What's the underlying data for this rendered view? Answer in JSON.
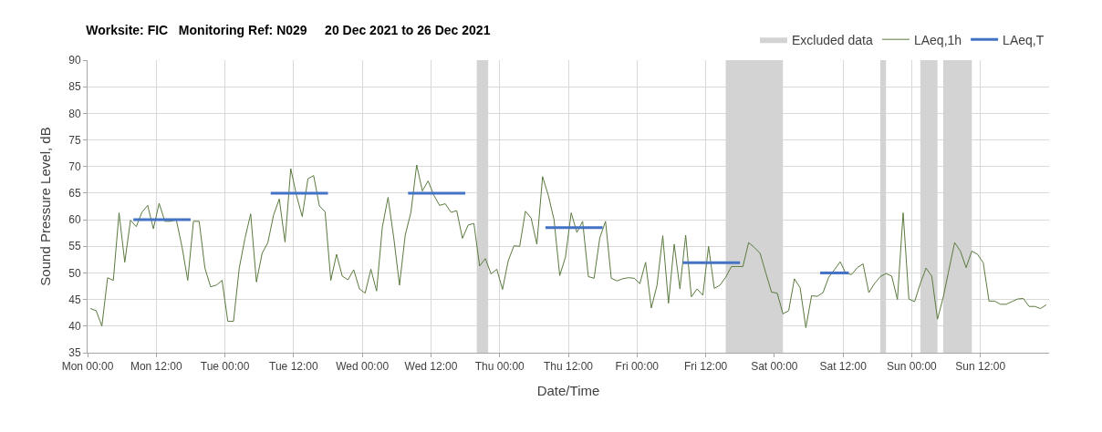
{
  "chart_data": {
    "type": "line",
    "title": "Worksite: FIC   Monitoring Ref: N029     20 Dec 2021 to 26 Dec 2021",
    "xlabel": "Date/Time",
    "ylabel": "Sound Pressure Level, dB",
    "x": [
      "2021-12-20T00:30",
      "2021-12-20T01:30",
      "2021-12-20T02:30",
      "2021-12-20T03:30",
      "2021-12-20T04:30",
      "2021-12-20T05:30",
      "2021-12-20T06:30",
      "2021-12-20T07:30",
      "2021-12-20T08:30",
      "2021-12-20T09:30",
      "2021-12-20T10:30",
      "2021-12-20T11:30",
      "2021-12-20T12:30",
      "2021-12-20T13:30",
      "2021-12-20T14:30",
      "2021-12-20T15:30",
      "2021-12-20T16:30",
      "2021-12-20T17:30",
      "2021-12-20T18:30",
      "2021-12-20T19:30",
      "2021-12-20T20:30",
      "2021-12-20T21:30",
      "2021-12-20T22:30",
      "2021-12-20T23:30",
      "2021-12-21T00:30",
      "2021-12-21T01:30",
      "2021-12-21T02:30",
      "2021-12-21T03:30",
      "2021-12-21T04:30",
      "2021-12-21T05:30",
      "2021-12-21T06:30",
      "2021-12-21T07:30",
      "2021-12-21T08:30",
      "2021-12-21T09:30",
      "2021-12-21T10:30",
      "2021-12-21T11:30",
      "2021-12-21T12:30",
      "2021-12-21T13:30",
      "2021-12-21T14:30",
      "2021-12-21T15:30",
      "2021-12-21T16:30",
      "2021-12-21T17:30",
      "2021-12-21T18:30",
      "2021-12-21T19:30",
      "2021-12-21T20:30",
      "2021-12-21T21:30",
      "2021-12-21T22:30",
      "2021-12-21T23:30",
      "2021-12-22T00:30",
      "2021-12-22T01:30",
      "2021-12-22T02:30",
      "2021-12-22T03:30",
      "2021-12-22T04:30",
      "2021-12-22T05:30",
      "2021-12-22T06:30",
      "2021-12-22T07:30",
      "2021-12-22T08:30",
      "2021-12-22T09:30",
      "2021-12-22T10:30",
      "2021-12-22T11:30",
      "2021-12-22T12:30",
      "2021-12-22T13:30",
      "2021-12-22T14:30",
      "2021-12-22T15:30",
      "2021-12-22T16:30",
      "2021-12-22T17:30",
      "2021-12-22T18:30",
      "2021-12-22T19:30",
      "2021-12-22T20:30",
      "2021-12-22T21:30",
      "2021-12-22T22:30",
      "2021-12-22T23:30",
      "2021-12-23T00:30",
      "2021-12-23T01:30",
      "2021-12-23T02:30",
      "2021-12-23T03:30",
      "2021-12-23T04:30",
      "2021-12-23T05:30",
      "2021-12-23T06:30",
      "2021-12-23T07:30",
      "2021-12-23T08:30",
      "2021-12-23T09:30",
      "2021-12-23T10:30",
      "2021-12-23T11:30",
      "2021-12-23T12:30",
      "2021-12-23T13:30",
      "2021-12-23T14:30",
      "2021-12-23T15:30",
      "2021-12-23T16:30",
      "2021-12-23T17:30",
      "2021-12-23T18:30",
      "2021-12-23T19:30",
      "2021-12-23T20:30",
      "2021-12-23T21:30",
      "2021-12-23T22:30",
      "2021-12-23T23:30",
      "2021-12-24T00:30",
      "2021-12-24T01:30",
      "2021-12-24T02:30",
      "2021-12-24T03:30",
      "2021-12-24T04:30",
      "2021-12-24T05:30",
      "2021-12-24T06:30",
      "2021-12-24T07:30",
      "2021-12-24T08:30",
      "2021-12-24T09:30",
      "2021-12-24T10:30",
      "2021-12-24T11:30",
      "2021-12-24T12:30",
      "2021-12-24T13:30",
      "2021-12-24T14:30",
      "2021-12-24T15:30",
      "2021-12-24T16:30",
      "2021-12-24T17:30",
      "2021-12-24T18:30",
      "2021-12-24T19:30",
      "2021-12-24T20:30",
      "2021-12-24T21:30",
      "2021-12-24T22:30",
      "2021-12-24T23:30",
      "2021-12-25T00:30",
      "2021-12-25T01:30",
      "2021-12-25T02:30",
      "2021-12-25T03:30",
      "2021-12-25T04:30",
      "2021-12-25T05:30",
      "2021-12-25T06:30",
      "2021-12-25T07:30",
      "2021-12-25T08:30",
      "2021-12-25T09:30",
      "2021-12-25T10:30",
      "2021-12-25T11:30",
      "2021-12-25T12:30",
      "2021-12-25T13:30",
      "2021-12-25T14:30",
      "2021-12-25T15:30",
      "2021-12-25T16:30",
      "2021-12-25T17:30",
      "2021-12-25T18:30",
      "2021-12-25T19:30",
      "2021-12-25T20:30",
      "2021-12-25T21:30",
      "2021-12-25T22:30",
      "2021-12-25T23:30",
      "2021-12-26T00:30",
      "2021-12-26T01:30",
      "2021-12-26T02:30",
      "2021-12-26T03:30",
      "2021-12-26T04:30",
      "2021-12-26T05:30",
      "2021-12-26T06:30",
      "2021-12-26T07:30",
      "2021-12-26T08:30",
      "2021-12-26T09:30",
      "2021-12-26T10:30",
      "2021-12-26T11:30",
      "2021-12-26T12:30",
      "2021-12-26T13:30",
      "2021-12-26T14:30",
      "2021-12-26T15:30",
      "2021-12-26T16:30",
      "2021-12-26T17:30",
      "2021-12-26T18:30",
      "2021-12-26T19:30",
      "2021-12-26T20:30",
      "2021-12-26T21:30",
      "2021-12-26T22:30",
      "2021-12-26T23:30"
    ],
    "series": [
      {
        "name": "LAeq,1h",
        "color": "#5a7a3e",
        "values": [
          43.3,
          42.9,
          40.0,
          49.1,
          48.6,
          61.3,
          52.0,
          59.9,
          58.7,
          61.4,
          62.7,
          58.3,
          63.1,
          59.7,
          59.7,
          60.0,
          54.9,
          48.6,
          59.7,
          59.7,
          50.9,
          47.4,
          47.7,
          48.6,
          40.9,
          40.9,
          50.9,
          56.5,
          61.1,
          48.3,
          53.7,
          55.7,
          60.9,
          63.9,
          55.8,
          69.6,
          64.6,
          60.6,
          67.7,
          68.3,
          62.6,
          61.5,
          48.6,
          53.5,
          49.4,
          48.7,
          50.6,
          47.0,
          46.2,
          50.7,
          46.6,
          58.6,
          64.2,
          56.6,
          47.7,
          57.1,
          61.4,
          70.3,
          65.4,
          67.3,
          64.6,
          62.7,
          63.0,
          61.4,
          61.7,
          56.5,
          59.0,
          59.3,
          51.3,
          52.7,
          49.8,
          50.7,
          46.9,
          52.3,
          55.1,
          55.0,
          61.6,
          60.3,
          55.4,
          68.1,
          64.6,
          60.0,
          49.5,
          53.0,
          61.3,
          57.6,
          59.7,
          49.3,
          49.0,
          56.6,
          59.7,
          49.0,
          48.5,
          48.9,
          49.1,
          49.0,
          48.0,
          52.0,
          43.4,
          47.7,
          57.0,
          44.3,
          55.4,
          47.0,
          57.1,
          45.5,
          47.0,
          45.8,
          55.0,
          47.1,
          47.7,
          49.2,
          51.2,
          51.2,
          51.2,
          55.7,
          54.8,
          53.7,
          50.0,
          46.4,
          46.2,
          42.3,
          42.9,
          48.9,
          47.2,
          39.7,
          45.7,
          45.6,
          46.3,
          49.2,
          50.6,
          52.1,
          49.9,
          49.7,
          51.0,
          51.7,
          46.3,
          48.0,
          49.3,
          49.9,
          49.4,
          45.0,
          61.3,
          45.1,
          44.6,
          48.0,
          50.9,
          49.4,
          41.3,
          45.4,
          50.6,
          55.7,
          54.1,
          51.0,
          54.1,
          53.5,
          51.9,
          44.7,
          44.7,
          44.1,
          44.1,
          44.6,
          45.1,
          45.2,
          43.7,
          43.7,
          43.3,
          44.0
        ]
      },
      {
        "name": "LAeq,T",
        "color": "#4472c4",
        "x": [
          "2021-12-20T08:00",
          "2021-12-20T18:00"
        ],
        "values": [
          60,
          60
        ]
      },
      {
        "color": "#4472c4",
        "x": [
          "2021-12-21T08:00",
          "2021-12-21T18:00"
        ],
        "values": [
          65,
          65
        ]
      },
      {
        "color": "#4472c4",
        "x": [
          "2021-12-22T08:00",
          "2021-12-22T18:00"
        ],
        "values": [
          65,
          65
        ]
      },
      {
        "color": "#4472c4",
        "x": [
          "2021-12-23T08:00",
          "2021-12-23T18:00"
        ],
        "values": [
          58.5,
          58.5
        ]
      },
      {
        "color": "#4472c4",
        "x": [
          "2021-12-24T08:00",
          "2021-12-24T18:00"
        ],
        "values": [
          51.9,
          51.9
        ]
      },
      {
        "color": "#4472c4",
        "x": [
          "2021-12-25T08:00",
          "2021-12-25T13:00"
        ],
        "values": [
          50,
          50
        ]
      }
    ],
    "bands": [
      {
        "axis": "x",
        "from": "2021-12-22T20:00",
        "to": "2021-12-22T22:00",
        "label": "Excluded data",
        "color": "#d3d3d3"
      },
      {
        "axis": "x",
        "from": "2021-12-24T15:30",
        "to": "2021-12-25T01:30",
        "color": "#d3d3d3"
      },
      {
        "axis": "x",
        "from": "2021-12-25T18:30",
        "to": "2021-12-25T19:30",
        "color": "#d3d3d3"
      },
      {
        "axis": "x",
        "from": "2021-12-26T01:30",
        "to": "2021-12-26T04:30",
        "color": "#d3d3d3"
      },
      {
        "axis": "x",
        "from": "2021-12-26T05:30",
        "to": "2021-12-26T10:30",
        "color": "#d3d3d3"
      }
    ],
    "xlim": [
      "2021-12-20T00:00",
      "2021-12-27T00:00"
    ],
    "xticks": [
      {
        "value": "2021-12-20T00:00",
        "label": "Mon 00:00"
      },
      {
        "value": "2021-12-20T12:00",
        "label": "Mon 12:00"
      },
      {
        "value": "2021-12-21T00:00",
        "label": "Tue 00:00"
      },
      {
        "value": "2021-12-21T12:00",
        "label": "Tue 12:00"
      },
      {
        "value": "2021-12-22T00:00",
        "label": "Wed 00:00"
      },
      {
        "value": "2021-12-22T12:00",
        "label": "Wed 12:00"
      },
      {
        "value": "2021-12-23T00:00",
        "label": "Thu 00:00"
      },
      {
        "value": "2021-12-23T12:00",
        "label": "Thu 12:00"
      },
      {
        "value": "2021-12-24T00:00",
        "label": "Fri 00:00"
      },
      {
        "value": "2021-12-24T12:00",
        "label": "Fri 12:00"
      },
      {
        "value": "2021-12-25T00:00",
        "label": "Sat 00:00"
      },
      {
        "value": "2021-12-25T12:00",
        "label": "Sat 12:00"
      },
      {
        "value": "2021-12-26T00:00",
        "label": "Sun 00:00"
      },
      {
        "value": "2021-12-26T12:00",
        "label": "Sun 12:00"
      }
    ],
    "ylim": [
      35,
      90
    ],
    "yticks": [
      35,
      40,
      45,
      50,
      55,
      60,
      65,
      70,
      75,
      80,
      85,
      90
    ],
    "grid": true,
    "legend": "top right",
    "marker": "none",
    "line_style": "solid"
  }
}
